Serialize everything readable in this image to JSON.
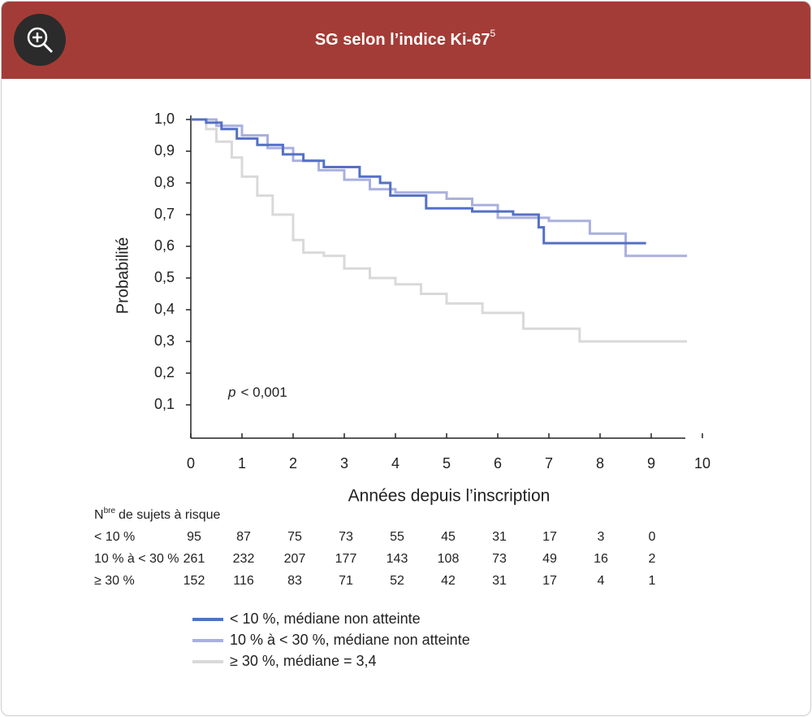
{
  "chart_data": {
    "type": "line",
    "title": "SG selon l’indice Ki-67",
    "title_sup": "5",
    "y_label": "Probabilité",
    "x_label": "Années depuis l’inscription",
    "annotation_italic": "p",
    "annotation": "< 0,001",
    "xlim": [
      0,
      10
    ],
    "xticks": [
      0,
      1,
      2,
      3,
      4,
      5,
      6,
      7,
      8,
      9,
      10
    ],
    "ylim": [
      0,
      1.0
    ],
    "yticks": [
      {
        "value": 1.0,
        "label": "1,0"
      },
      {
        "value": 0.9,
        "label": "0,9"
      },
      {
        "value": 0.8,
        "label": "0,8"
      },
      {
        "value": 0.7,
        "label": "0,7"
      },
      {
        "value": 0.6,
        "label": "0,6"
      },
      {
        "value": 0.5,
        "label": "0,5"
      },
      {
        "value": 0.4,
        "label": "0,4"
      },
      {
        "value": 0.3,
        "label": "0,3"
      },
      {
        "value": 0.2,
        "label": "0,2"
      },
      {
        "value": 0.1,
        "label": "0,1"
      }
    ],
    "series": [
      {
        "name": "< 10 %, médiane non atteinte",
        "color": "#5470c6",
        "x": [
          0,
          0.3,
          0.6,
          0.9,
          1.3,
          1.8,
          2.2,
          2.6,
          3.3,
          3.7,
          3.9,
          4.6,
          5.5,
          6.3,
          6.8,
          6.9,
          8.9
        ],
        "values": [
          1.0,
          0.99,
          0.97,
          0.94,
          0.92,
          0.89,
          0.87,
          0.85,
          0.82,
          0.8,
          0.76,
          0.72,
          0.71,
          0.7,
          0.66,
          0.61,
          0.61
        ]
      },
      {
        "name": "10 % à < 30 %, médiane non atteinte",
        "color": "#aab0de",
        "x": [
          0,
          0.5,
          1.0,
          1.5,
          2.0,
          2.5,
          3.0,
          3.5,
          4.0,
          5.0,
          5.5,
          6.0,
          7.0,
          7.8,
          8.5,
          9.7
        ],
        "values": [
          1.0,
          0.98,
          0.95,
          0.91,
          0.87,
          0.84,
          0.81,
          0.78,
          0.77,
          0.75,
          0.73,
          0.69,
          0.68,
          0.64,
          0.57,
          0.57
        ]
      },
      {
        "name": "≥ 30 %, médiane = 3,4",
        "color": "#d9d9d9",
        "x": [
          0,
          0.3,
          0.5,
          0.8,
          1.0,
          1.3,
          1.6,
          2.0,
          2.2,
          2.6,
          3.0,
          3.5,
          4.0,
          4.5,
          5.0,
          5.7,
          6.5,
          7.6,
          9.7
        ],
        "values": [
          1.0,
          0.97,
          0.93,
          0.88,
          0.82,
          0.76,
          0.7,
          0.62,
          0.58,
          0.57,
          0.53,
          0.5,
          0.48,
          0.45,
          0.42,
          0.39,
          0.34,
          0.3,
          0.3
        ]
      }
    ],
    "risk_table": {
      "title": "N",
      "title_sup": "bre",
      "title_rest": "de sujets à risque",
      "rows": [
        {
          "label": "< 10 %",
          "counts": [
            95,
            87,
            75,
            73,
            55,
            45,
            31,
            17,
            3,
            0
          ]
        },
        {
          "label": "10 % à < 30 %",
          "counts": [
            261,
            232,
            207,
            177,
            143,
            108,
            73,
            49,
            16,
            2
          ]
        },
        {
          "label": "≥ 30 %",
          "counts": [
            152,
            116,
            83,
            71,
            52,
            42,
            31,
            17,
            4,
            1
          ]
        }
      ]
    }
  }
}
